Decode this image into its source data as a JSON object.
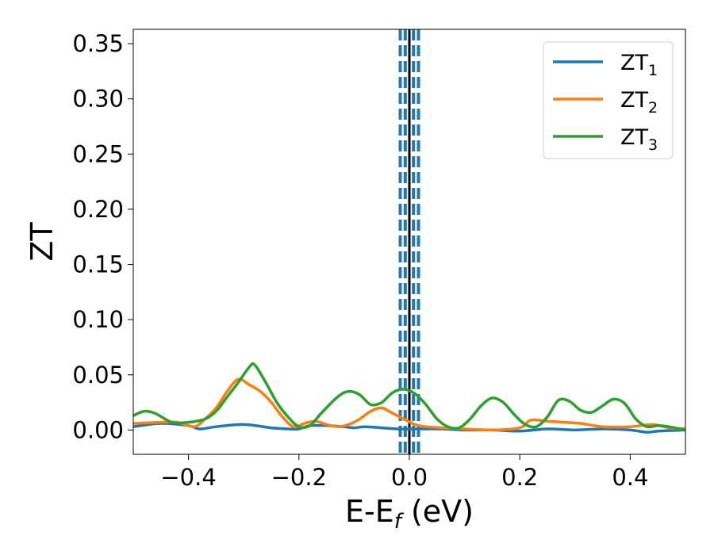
{
  "chart_data": {
    "type": "line",
    "xlabel_main": "E-E",
    "xlabel_sub": "f",
    "xlabel_unit": " (eV)",
    "ylabel": "ZT",
    "xlim": [
      -0.5,
      0.5
    ],
    "ylim": [
      -0.022,
      0.363
    ],
    "x_ticks": [
      -0.4,
      -0.2,
      0.0,
      0.2,
      0.4
    ],
    "x_tick_labels": [
      "−0.4",
      "−0.2",
      "0.0",
      "0.2",
      "0.4"
    ],
    "y_ticks": [
      0.0,
      0.05,
      0.1,
      0.15,
      0.2,
      0.25,
      0.3,
      0.35
    ],
    "y_tick_labels": [
      "0.00",
      "0.05",
      "0.10",
      "0.15",
      "0.20",
      "0.25",
      "0.30",
      "0.35"
    ],
    "grid": false,
    "legend_position": "top-right",
    "vertical_lines": [
      {
        "x": 0.0,
        "style": "solid",
        "color": "#000000"
      },
      {
        "x": -0.0075,
        "style": "dashed",
        "color": "#1f77b4"
      },
      {
        "x": 0.0075,
        "style": "dashed",
        "color": "#1f77b4"
      },
      {
        "x": -0.0165,
        "style": "dashed",
        "color": "#1f77b4"
      },
      {
        "x": 0.0165,
        "style": "dashed",
        "color": "#1f77b4"
      }
    ],
    "series": [
      {
        "name": "ZT",
        "sub": "1",
        "color": "#1f77b4",
        "points": [
          [
            -0.5,
            0.003
          ],
          [
            -0.45,
            0.006
          ],
          [
            -0.4,
            0.004
          ],
          [
            -0.38,
            0.001
          ],
          [
            -0.35,
            0.003
          ],
          [
            -0.3,
            0.005
          ],
          [
            -0.25,
            0.002
          ],
          [
            -0.22,
            0.001
          ],
          [
            -0.2,
            0.001
          ],
          [
            -0.18,
            0.004
          ],
          [
            -0.15,
            0.004
          ],
          [
            -0.12,
            0.003
          ],
          [
            -0.1,
            0.002
          ],
          [
            -0.08,
            0.003
          ],
          [
            -0.05,
            0.002
          ],
          [
            -0.02,
            0.001
          ],
          [
            0.0,
            0.001
          ],
          [
            0.03,
            0.001
          ],
          [
            0.06,
            0.001
          ],
          [
            0.1,
            0.0
          ],
          [
            0.15,
            0.0
          ],
          [
            0.2,
            -0.001
          ],
          [
            0.25,
            0.001
          ],
          [
            0.3,
            0.0
          ],
          [
            0.35,
            0.001
          ],
          [
            0.4,
            0.0
          ],
          [
            0.43,
            -0.002
          ],
          [
            0.45,
            -0.001
          ],
          [
            0.5,
            0.0
          ]
        ]
      },
      {
        "name": "ZT",
        "sub": "2",
        "color": "#ff7f0e",
        "points": [
          [
            -0.5,
            0.006
          ],
          [
            -0.45,
            0.007
          ],
          [
            -0.42,
            0.007
          ],
          [
            -0.39,
            0.003
          ],
          [
            -0.37,
            0.01
          ],
          [
            -0.35,
            0.02
          ],
          [
            -0.33,
            0.035
          ],
          [
            -0.31,
            0.046
          ],
          [
            -0.29,
            0.041
          ],
          [
            -0.27,
            0.035
          ],
          [
            -0.25,
            0.025
          ],
          [
            -0.23,
            0.012
          ],
          [
            -0.21,
            0.003
          ],
          [
            -0.19,
            0.006
          ],
          [
            -0.17,
            0.008
          ],
          [
            -0.15,
            0.005
          ],
          [
            -0.13,
            0.003
          ],
          [
            -0.11,
            0.005
          ],
          [
            -0.09,
            0.01
          ],
          [
            -0.07,
            0.017
          ],
          [
            -0.05,
            0.02
          ],
          [
            -0.03,
            0.015
          ],
          [
            -0.01,
            0.01
          ],
          [
            0.01,
            0.005
          ],
          [
            0.03,
            0.003
          ],
          [
            0.06,
            0.002
          ],
          [
            0.1,
            0.001
          ],
          [
            0.15,
            0.0
          ],
          [
            0.2,
            0.002
          ],
          [
            0.22,
            0.009
          ],
          [
            0.25,
            0.008
          ],
          [
            0.28,
            0.007
          ],
          [
            0.31,
            0.006
          ],
          [
            0.35,
            0.003
          ],
          [
            0.4,
            0.003
          ],
          [
            0.44,
            0.005
          ],
          [
            0.47,
            0.002
          ],
          [
            0.5,
            0.001
          ]
        ]
      },
      {
        "name": "ZT",
        "sub": "3",
        "color": "#2ca02c",
        "points": [
          [
            -0.5,
            0.013
          ],
          [
            -0.48,
            0.017
          ],
          [
            -0.46,
            0.015
          ],
          [
            -0.43,
            0.007
          ],
          [
            -0.4,
            0.007
          ],
          [
            -0.37,
            0.01
          ],
          [
            -0.35,
            0.017
          ],
          [
            -0.33,
            0.03
          ],
          [
            -0.31,
            0.043
          ],
          [
            -0.29,
            0.057
          ],
          [
            -0.28,
            0.059
          ],
          [
            -0.26,
            0.043
          ],
          [
            -0.24,
            0.025
          ],
          [
            -0.22,
            0.012
          ],
          [
            -0.2,
            0.003
          ],
          [
            -0.18,
            0.004
          ],
          [
            -0.16,
            0.015
          ],
          [
            -0.13,
            0.03
          ],
          [
            -0.11,
            0.035
          ],
          [
            -0.09,
            0.032
          ],
          [
            -0.07,
            0.023
          ],
          [
            -0.05,
            0.025
          ],
          [
            -0.03,
            0.034
          ],
          [
            -0.01,
            0.037
          ],
          [
            0.01,
            0.033
          ],
          [
            0.03,
            0.023
          ],
          [
            0.05,
            0.01
          ],
          [
            0.07,
            0.003
          ],
          [
            0.09,
            0.002
          ],
          [
            0.11,
            0.01
          ],
          [
            0.13,
            0.022
          ],
          [
            0.15,
            0.029
          ],
          [
            0.17,
            0.025
          ],
          [
            0.19,
            0.014
          ],
          [
            0.21,
            0.005
          ],
          [
            0.23,
            0.003
          ],
          [
            0.25,
            0.012
          ],
          [
            0.27,
            0.027
          ],
          [
            0.29,
            0.026
          ],
          [
            0.31,
            0.018
          ],
          [
            0.33,
            0.016
          ],
          [
            0.35,
            0.022
          ],
          [
            0.37,
            0.028
          ],
          [
            0.39,
            0.024
          ],
          [
            0.41,
            0.01
          ],
          [
            0.43,
            0.003
          ],
          [
            0.45,
            0.004
          ],
          [
            0.47,
            0.003
          ],
          [
            0.5,
            0.0
          ]
        ]
      }
    ]
  }
}
